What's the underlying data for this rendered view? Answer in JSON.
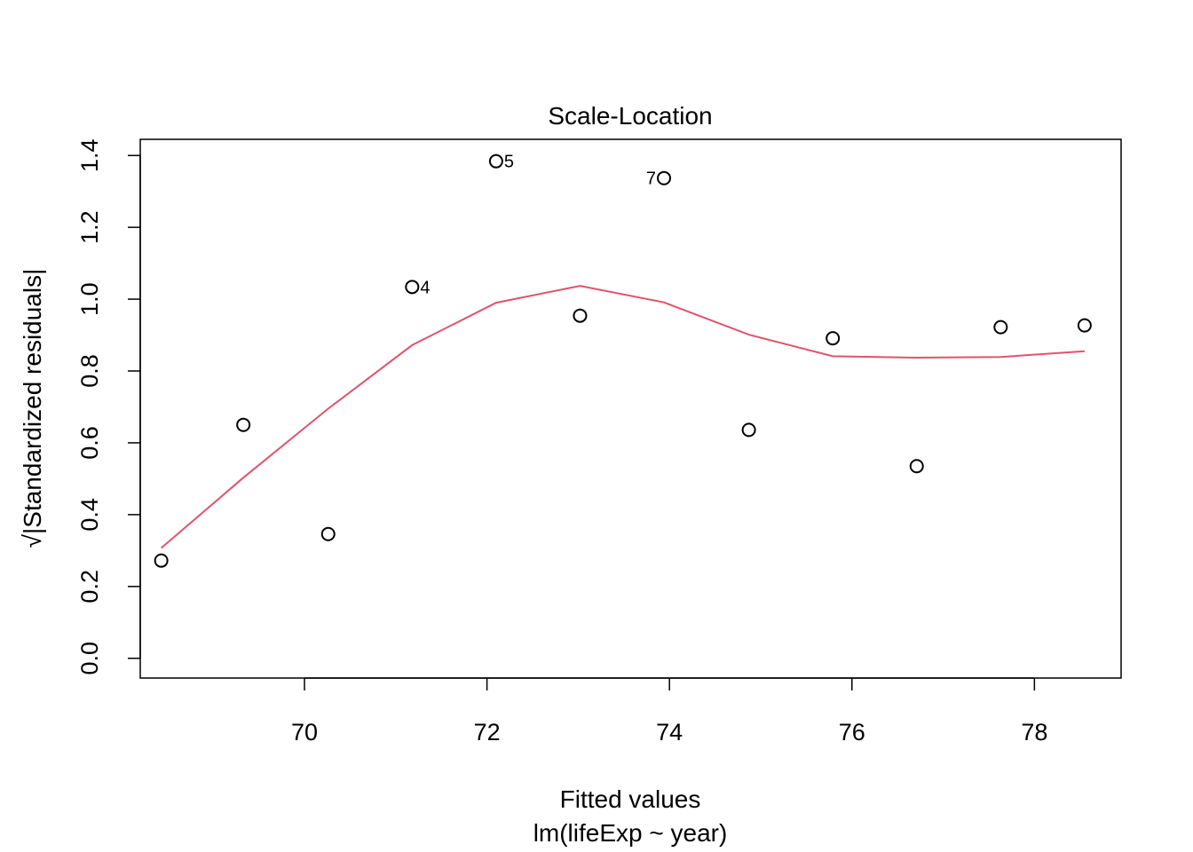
{
  "chart_data": {
    "type": "scatter",
    "title": "Scale-Location",
    "xlabel": "Fitted values",
    "xsublabel": "lm(lifeExp ~ year)",
    "ylabel": "√|Standardized residuals|",
    "xlim": [
      68.2,
      78.95
    ],
    "ylim": [
      -0.055,
      1.445
    ],
    "xticks": [
      70,
      72,
      74,
      76,
      78
    ],
    "xtick_labels": [
      "70",
      "72",
      "74",
      "76",
      "78"
    ],
    "yticks": [
      0.0,
      0.2,
      0.4,
      0.6,
      0.8,
      1.0,
      1.2,
      1.4
    ],
    "ytick_labels": [
      "0.0",
      "0.2",
      "0.4",
      "0.6",
      "0.8",
      "1.0",
      "1.2",
      "1.4"
    ],
    "grid": false,
    "points": [
      {
        "x": 68.43,
        "y": 0.272
      },
      {
        "x": 69.33,
        "y": 0.65
      },
      {
        "x": 70.26,
        "y": 0.346
      },
      {
        "x": 71.18,
        "y": 1.034,
        "label": "4",
        "label_side": "right"
      },
      {
        "x": 72.1,
        "y": 1.384,
        "label": "5",
        "label_side": "right"
      },
      {
        "x": 73.02,
        "y": 0.954
      },
      {
        "x": 73.94,
        "y": 1.337,
        "label": "7",
        "label_side": "left"
      },
      {
        "x": 74.87,
        "y": 0.636
      },
      {
        "x": 75.79,
        "y": 0.891
      },
      {
        "x": 76.71,
        "y": 0.535
      },
      {
        "x": 77.63,
        "y": 0.922
      },
      {
        "x": 78.55,
        "y": 0.927
      }
    ],
    "smooth_line": {
      "color": "#DF536B",
      "x": [
        68.43,
        69.33,
        70.26,
        71.18,
        72.1,
        73.02,
        73.94,
        74.87,
        75.79,
        76.71,
        77.63,
        78.55
      ],
      "y": [
        0.307,
        0.503,
        0.695,
        0.872,
        0.99,
        1.037,
        0.991,
        0.901,
        0.841,
        0.837,
        0.839,
        0.855
      ]
    }
  }
}
